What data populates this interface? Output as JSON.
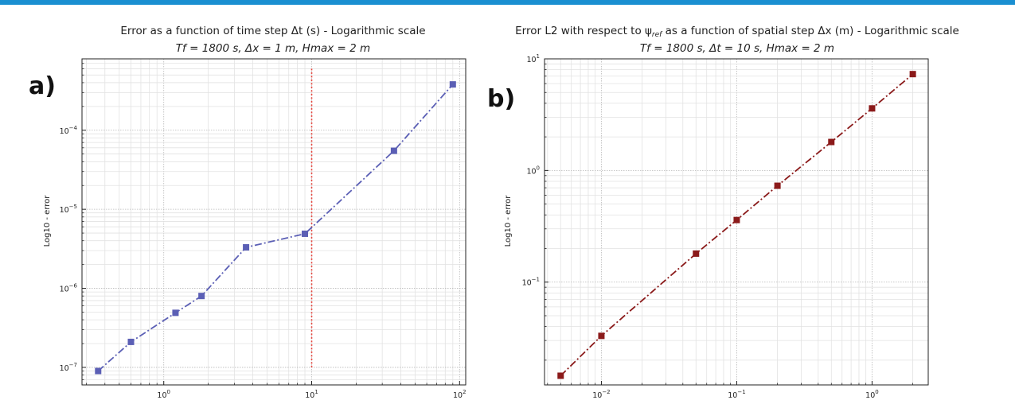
{
  "top_bar_color": "#1a8fd1",
  "chart_data": [
    {
      "type": "line",
      "panel_label": "a)",
      "title": "Error as a function of time step Δt (s) - Logarithmic scale",
      "subtitle": "Tf = 1800 s, Δx = 1 m, Hmax = 2 m",
      "xlabel": "",
      "ylabel": "Log10 - error",
      "xscale": "log",
      "yscale": "log",
      "xlim": [
        0.28,
        110
      ],
      "ylim": [
        6e-08,
        0.0008
      ],
      "grid": true,
      "legend": "none",
      "x_ticks": [
        {
          "value": 1,
          "base": "10",
          "exp": "0"
        },
        {
          "value": 10,
          "base": "10",
          "exp": "1"
        },
        {
          "value": 100,
          "base": "10",
          "exp": "2"
        }
      ],
      "y_ticks": [
        {
          "value": 1e-07,
          "base": "10",
          "exp": "−7"
        },
        {
          "value": 1e-06,
          "base": "10",
          "exp": "−6"
        },
        {
          "value": 1e-05,
          "base": "10",
          "exp": "−5"
        },
        {
          "value": 0.0001,
          "base": "10",
          "exp": "−4"
        }
      ],
      "series": [
        {
          "color": "#5b5fb5",
          "linestyle": "dashdot",
          "marker": "square",
          "x": [
            0.36,
            0.6,
            1.2,
            1.8,
            3.6,
            9,
            36,
            90
          ],
          "y": [
            9e-08,
            2.1e-07,
            4.9e-07,
            8e-07,
            3.3e-06,
            4.9e-06,
            5.5e-05,
            0.00038
          ]
        }
      ],
      "vline": {
        "x": 10,
        "y_from": 1e-07,
        "y_to": 0.0006,
        "color": "#e8423a",
        "linestyle": "dotted"
      }
    },
    {
      "type": "line",
      "panel_label": "b)",
      "title": "Error L2 with respect to ψref as a function of spatial step Δx (m) - Logarithmic scale",
      "subtitle": "Tf = 1800 s, Δt = 10 s, Hmax = 2 m",
      "xlabel": "",
      "ylabel": "Log10 - error",
      "xscale": "log",
      "yscale": "log",
      "xlim": [
        0.0038,
        2.6
      ],
      "ylim": [
        0.012,
        10
      ],
      "grid": true,
      "legend": "none",
      "x_ticks": [
        {
          "value": 0.01,
          "base": "10",
          "exp": "−2"
        },
        {
          "value": 0.1,
          "base": "10",
          "exp": "−1"
        },
        {
          "value": 1,
          "base": "10",
          "exp": "0"
        }
      ],
      "y_ticks": [
        {
          "value": 0.1,
          "base": "10",
          "exp": "−1"
        },
        {
          "value": 1,
          "base": "10",
          "exp": "0"
        },
        {
          "value": 10,
          "base": "10",
          "exp": "1"
        }
      ],
      "series": [
        {
          "color": "#8b1a1a",
          "linestyle": "dashdot",
          "marker": "square",
          "x": [
            0.005,
            0.01,
            0.05,
            0.1,
            0.2,
            0.5,
            1,
            2
          ],
          "y": [
            0.0145,
            0.033,
            0.18,
            0.36,
            0.73,
            1.8,
            3.6,
            7.3
          ]
        }
      ]
    }
  ]
}
